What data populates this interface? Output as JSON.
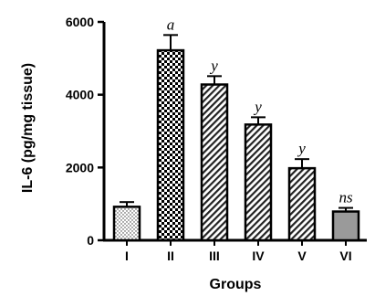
{
  "chart_data": {
    "type": "bar",
    "xlabel": "Groups",
    "ylabel": "IL-6 (pg/mg tissue)",
    "ylim": [
      0,
      6000
    ],
    "yticks": [
      "0",
      "2000",
      "4000",
      "6000"
    ],
    "categories": [
      "I",
      "II",
      "III",
      "IV",
      "V",
      "VI"
    ],
    "values": [
      920,
      5220,
      4280,
      3180,
      1980,
      790
    ],
    "errors": [
      130,
      420,
      230,
      200,
      250,
      100
    ],
    "annotations": [
      "",
      "a",
      "y",
      "y",
      "y",
      "ns"
    ],
    "patterns": [
      "dots",
      "checker",
      "diagonal",
      "diagonal",
      "diagonal",
      "solid-gray"
    ],
    "colors": {
      "bar_edge": "#000000",
      "solid_fill": "#9a9a9a",
      "axis": "#000000"
    },
    "grid": false
  }
}
